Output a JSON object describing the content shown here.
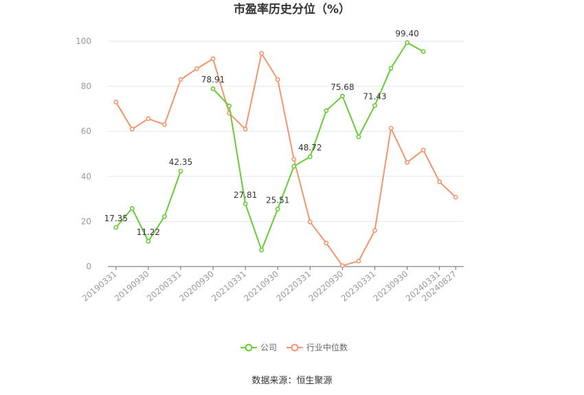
{
  "chart_data": {
    "type": "line",
    "title": "市盈率历史分位（%）",
    "source": "数据来源：恒生聚源",
    "x_ticks": [
      "20190331",
      "20190930",
      "20200331",
      "20200930",
      "20210331",
      "20210930",
      "20220331",
      "20220930",
      "20230331",
      "20230930",
      "20240331",
      "20240827"
    ],
    "ylim": [
      0,
      100
    ],
    "y_ticks": [
      0,
      20,
      40,
      60,
      80,
      100
    ],
    "grid": true,
    "legend_position": "bottom",
    "series": [
      {
        "name": "公司",
        "color": "#66cc33",
        "values": [
          17.35,
          25.8,
          11.22,
          22.2,
          42.35,
          null,
          78.91,
          71.3,
          27.81,
          7.3,
          25.51,
          44.5,
          48.72,
          69.2,
          75.68,
          57.6,
          71.43,
          88.0,
          99.4,
          95.4,
          null,
          null
        ],
        "labels": [
          {
            "i": 0,
            "text": "17.35"
          },
          {
            "i": 2,
            "text": "11.22"
          },
          {
            "i": 4,
            "text": "42.35"
          },
          {
            "i": 6,
            "text": "78.91"
          },
          {
            "i": 8,
            "text": "27.81"
          },
          {
            "i": 10,
            "text": "25.51"
          },
          {
            "i": 12,
            "text": "48.72"
          },
          {
            "i": 14,
            "text": "75.68"
          },
          {
            "i": 16,
            "text": "71.43"
          },
          {
            "i": 18,
            "text": "99.40"
          }
        ]
      },
      {
        "name": "行业中位数",
        "color": "#f4946a",
        "values": [
          73.0,
          61.0,
          65.6,
          63.0,
          83.0,
          87.8,
          92.2,
          68.0,
          61.0,
          94.6,
          83.0,
          47.6,
          19.8,
          10.4,
          0.4,
          2.4,
          16.0,
          61.4,
          46.2,
          51.7,
          37.6,
          30.8
        ],
        "labels": []
      }
    ]
  }
}
